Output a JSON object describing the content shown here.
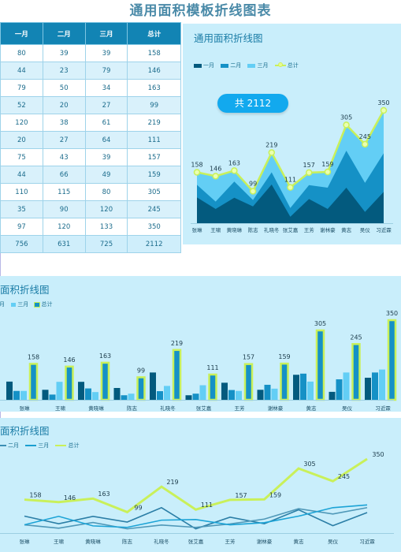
{
  "page": {
    "title": "通用面积模板折线图表"
  },
  "table": {
    "headers": [
      "一月",
      "二月",
      "三月",
      "总计"
    ],
    "rows": [
      [
        "80",
        "39",
        "39",
        "158"
      ],
      [
        "44",
        "23",
        "79",
        "146"
      ],
      [
        "79",
        "50",
        "34",
        "163"
      ],
      [
        "52",
        "20",
        "27",
        "99"
      ],
      [
        "120",
        "38",
        "61",
        "219"
      ],
      [
        "20",
        "27",
        "64",
        "111"
      ],
      [
        "75",
        "43",
        "39",
        "157"
      ],
      [
        "44",
        "66",
        "49",
        "159"
      ],
      [
        "110",
        "115",
        "80",
        "305"
      ],
      [
        "35",
        "90",
        "120",
        "245"
      ],
      [
        "97",
        "120",
        "133",
        "350"
      ],
      [
        "756",
        "631",
        "725",
        "2112"
      ]
    ]
  },
  "panel_top": {
    "title": "通用面积折线图",
    "total_label": "共 2112"
  },
  "panel_mid": {
    "title": "面积折线图"
  },
  "panel_bot": {
    "title": "面积折线图"
  },
  "legend": {
    "jan": "一月",
    "feb": "二月",
    "mar": "三月",
    "total": "总计"
  },
  "colors": {
    "jan": "#035a7e",
    "feb": "#1591c6",
    "mar": "#63cef5",
    "total": "#c9f05a",
    "panel": "#c9eefb",
    "header": "#1284b4"
  },
  "chart_data": [
    {
      "type": "area",
      "stacked": true,
      "categories": [
        "张琳",
        "王啸",
        "黄晓琳",
        "陈志",
        "礼晓冬",
        "张艾嘉",
        "王芳",
        "谢林豪",
        "黄志",
        "吴仪",
        "习近霖"
      ],
      "series": [
        {
          "name": "一月",
          "values": [
            80,
            44,
            79,
            52,
            120,
            20,
            75,
            44,
            110,
            35,
            97
          ]
        },
        {
          "name": "二月",
          "values": [
            39,
            23,
            50,
            20,
            38,
            27,
            43,
            66,
            115,
            90,
            120
          ]
        },
        {
          "name": "三月",
          "values": [
            39,
            79,
            34,
            27,
            61,
            64,
            39,
            49,
            80,
            120,
            133
          ]
        },
        {
          "name": "总计",
          "values": [
            158,
            146,
            163,
            99,
            219,
            111,
            157,
            159,
            305,
            245,
            350
          ]
        }
      ],
      "grid": false,
      "legend": "top-left"
    },
    {
      "type": "bar",
      "categories": [
        "张琳",
        "王啸",
        "黄晓琳",
        "陈志",
        "礼晓冬",
        "张艾嘉",
        "王芳",
        "谢林豪",
        "黄志",
        "吴仪",
        "习近霖"
      ],
      "series": [
        {
          "name": "一月",
          "values": [
            80,
            44,
            79,
            52,
            120,
            20,
            75,
            44,
            110,
            35,
            97
          ]
        },
        {
          "name": "二月",
          "values": [
            39,
            23,
            50,
            20,
            38,
            27,
            43,
            66,
            115,
            90,
            120
          ]
        },
        {
          "name": "三月",
          "values": [
            39,
            79,
            34,
            27,
            61,
            64,
            39,
            49,
            80,
            120,
            133
          ]
        },
        {
          "name": "总计",
          "values": [
            158,
            146,
            163,
            99,
            219,
            111,
            157,
            159,
            305,
            245,
            350
          ]
        }
      ],
      "grid": false,
      "legend": "top-left"
    },
    {
      "type": "line",
      "categories": [
        "张琳",
        "王啸",
        "黄晓琳",
        "陈志",
        "礼晓冬",
        "张艾嘉",
        "王芳",
        "谢林豪",
        "黄志",
        "吴仪",
        "习近霖"
      ],
      "series": [
        {
          "name": "一月",
          "values": [
            80,
            44,
            79,
            52,
            120,
            20,
            75,
            44,
            110,
            35,
            97
          ]
        },
        {
          "name": "二月",
          "values": [
            39,
            23,
            50,
            20,
            38,
            27,
            43,
            66,
            115,
            90,
            120
          ]
        },
        {
          "name": "三月",
          "values": [
            39,
            79,
            34,
            27,
            61,
            64,
            39,
            49,
            80,
            120,
            133
          ]
        },
        {
          "name": "总计",
          "values": [
            158,
            146,
            163,
            99,
            219,
            111,
            157,
            159,
            305,
            245,
            350
          ]
        }
      ],
      "grid": false,
      "legend": "top-left"
    }
  ]
}
